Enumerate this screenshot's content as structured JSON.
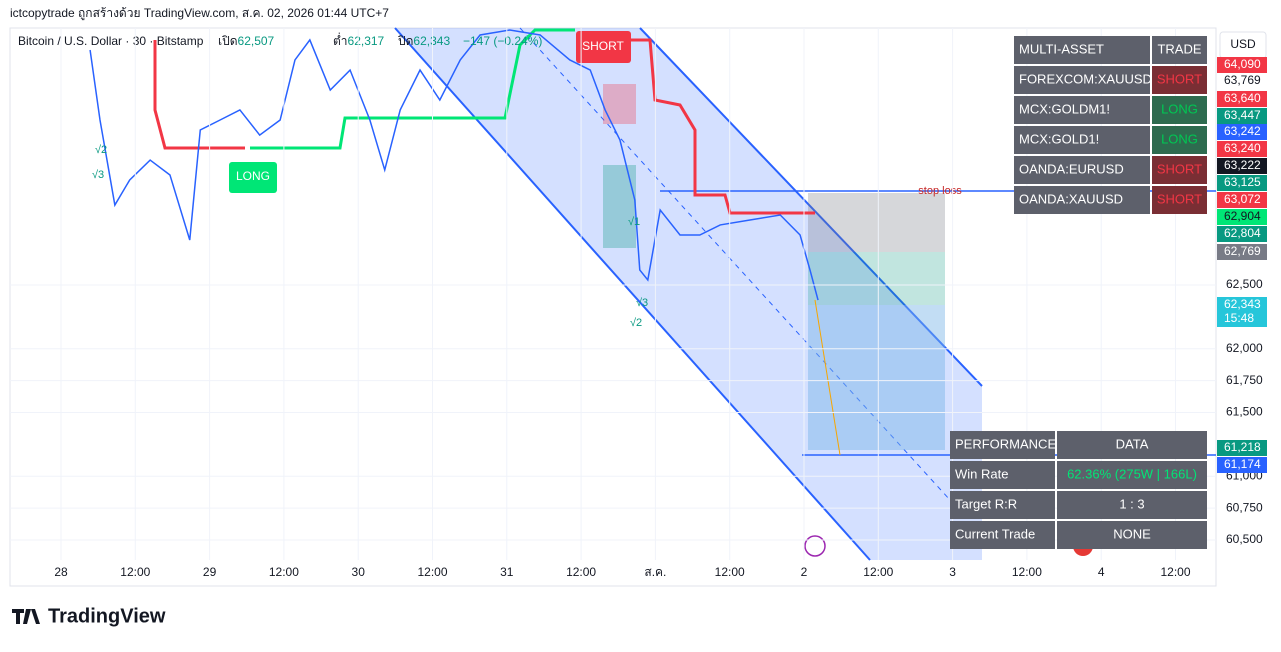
{
  "header": {
    "title": "ictcopytrade ถูกสร้างด้วย TradingView.com, ส.ค. 02, 2026 01:44 UTC+7",
    "symbol": "Bitcoin / U.S. Dollar · 30 · Bitstamp",
    "ohlc": [
      {
        "label": "เปิด",
        "value": "62,507"
      },
      {
        "label": "ต่ำ",
        "value": "62,317"
      },
      {
        "label": "ปิด",
        "value": "62,343"
      }
    ],
    "change": "−147 (−0.24%)"
  },
  "currency": "USD",
  "price_axis": {
    "ticks": [
      {
        "value": 62500,
        "label": "62,500"
      },
      {
        "value": 62000,
        "label": "62,000"
      },
      {
        "value": 61750,
        "label": "61,750"
      },
      {
        "value": 61500,
        "label": "61,500"
      },
      {
        "value": 61000,
        "label": "61,000"
      },
      {
        "value": 60750,
        "label": "60,750"
      },
      {
        "value": 60500,
        "label": "60,500"
      }
    ]
  },
  "price_badges": [
    {
      "label": "64,090",
      "color": "#f23645"
    },
    {
      "label": "63,769",
      "color": "#ffffff"
    },
    {
      "label": "63,640",
      "color": "#f23645"
    },
    {
      "label": "63,447",
      "color": "#089981"
    },
    {
      "label": "63,242",
      "color": "#2962ff"
    },
    {
      "label": "63,240",
      "color": "#f23645"
    },
    {
      "label": "63,222",
      "color": "#131722"
    },
    {
      "label": "63,125",
      "color": "#089981"
    },
    {
      "label": "63,072",
      "color": "#f23645"
    },
    {
      "label": "62,904",
      "color": "#00e676"
    },
    {
      "label": "62,804",
      "color": "#089981"
    },
    {
      "label": "62,769",
      "color": "#787b86"
    },
    {
      "label": "62,343",
      "color": "#26c6da"
    },
    {
      "label": "15:48",
      "color": "#26c6da"
    },
    {
      "label": "61,218",
      "color": "#089981"
    },
    {
      "label": "61,174",
      "color": "#2962ff"
    }
  ],
  "time_axis": [
    "28",
    "12:00",
    "29",
    "12:00",
    "30",
    "12:00",
    "31",
    "12:00",
    "ส.ค.",
    "12:00",
    "2",
    "12:00",
    "3",
    "12:00",
    "4",
    "12:00"
  ],
  "price_trace": {
    "hours": [
      4.7,
      6.3,
      8.7,
      11.1,
      14.4,
      17.6,
      20.8,
      22.5,
      25.7,
      28.9,
      32.1,
      35.4,
      37.8,
      40.2,
      43.5,
      46.7,
      49.9,
      52.3,
      54.8,
      58,
      61.2,
      64.5,
      67.7,
      72.5,
      77.4,
      82.2,
      85.5,
      87.9,
      90.3,
      92.7,
      93.5,
      94.8,
      96.8,
      100,
      103.2,
      106.5,
      111.3,
      116.2,
      119.4,
      121,
      122.3
    ],
    "close": [
      64343,
      63794,
      63127,
      63324,
      63480,
      63363,
      62853,
      63716,
      63794,
      63873,
      63676,
      63794,
      64265,
      64422,
      64029,
      64186,
      63794,
      63402,
      63873,
      64186,
      63951,
      64265,
      64461,
      64500,
      64461,
      64265,
      64186,
      63873,
      63637,
      63167,
      62618,
      62539,
      63088,
      62892,
      62892,
      62971,
      63010,
      63049,
      62892,
      62618,
      62382
    ],
    "color": "#2962ff"
  },
  "multi_asset": {
    "header": [
      "MULTI-ASSET",
      "TRADE"
    ],
    "rows": [
      [
        "FOREXCOM:XAUUSD",
        "SHORT"
      ],
      [
        "MCX:GOLDM1!",
        "LONG"
      ],
      [
        "MCX:GOLD1!",
        "LONG"
      ],
      [
        "OANDA:EURUSD",
        "SHORT"
      ],
      [
        "OANDA:XAUUSD",
        "SHORT"
      ]
    ]
  },
  "performance": {
    "header": [
      "PERFORMANCE",
      "DATA"
    ],
    "rows": [
      [
        "Win Rate",
        "62.36% (275W | 166L)"
      ],
      [
        "Target R:R",
        "1 : 3"
      ],
      [
        "Current Trade",
        "NONE"
      ]
    ]
  },
  "annotations": {
    "long": "LONG",
    "short": "SHORT",
    "stop_loss": "stop loss",
    "marks": [
      "√2",
      "√3",
      "√1",
      "√3",
      "√2"
    ]
  },
  "logo": "TradingView"
}
